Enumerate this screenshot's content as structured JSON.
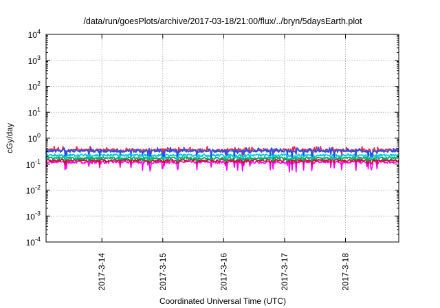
{
  "chart_data": {
    "type": "line",
    "title": "/data/run/goesPlots/archive/2017-03-18/21:00/flux/../bryn/5daysEarth.plot",
    "xlabel": "Coordinated Universal Time (UTC)",
    "ylabel": "cGy/day",
    "yscale": "log",
    "ylim": [
      0.0001,
      10000
    ],
    "xlim": [
      "2017-03-13 02:00",
      "2017-03-18 21:00"
    ],
    "grid": true,
    "x_ticks": [
      "2017-3-14",
      "2017-3-15",
      "2017-3-16",
      "2017-3-17",
      "2017-3-18"
    ],
    "y_ticks": [
      {
        "base": "10",
        "exp": "-4"
      },
      {
        "base": "10",
        "exp": "-3"
      },
      {
        "base": "10",
        "exp": "-2"
      },
      {
        "base": "10",
        "exp": "-1"
      },
      {
        "base": "10",
        "exp": "0"
      },
      {
        "base": "10",
        "exp": "1"
      },
      {
        "base": "10",
        "exp": "2"
      },
      {
        "base": "10",
        "exp": "3"
      },
      {
        "base": "10",
        "exp": "4"
      }
    ],
    "series": [
      {
        "color": "#ff00ff",
        "level": 0.12,
        "dip_depth": 0.6
      },
      {
        "color": "#d01030",
        "level": 0.14,
        "dip_depth": 0.25
      },
      {
        "color": "#00b060",
        "level": 0.17,
        "dip_depth": 0.2
      },
      {
        "color": "#00c8e0",
        "level": 0.22,
        "dip_depth": 0.25
      },
      {
        "color": "#e03050",
        "level": 0.35,
        "dip_depth": 0.35
      },
      {
        "color": "#2a50e8",
        "level": 0.32,
        "dip_depth": 0.4
      }
    ]
  }
}
